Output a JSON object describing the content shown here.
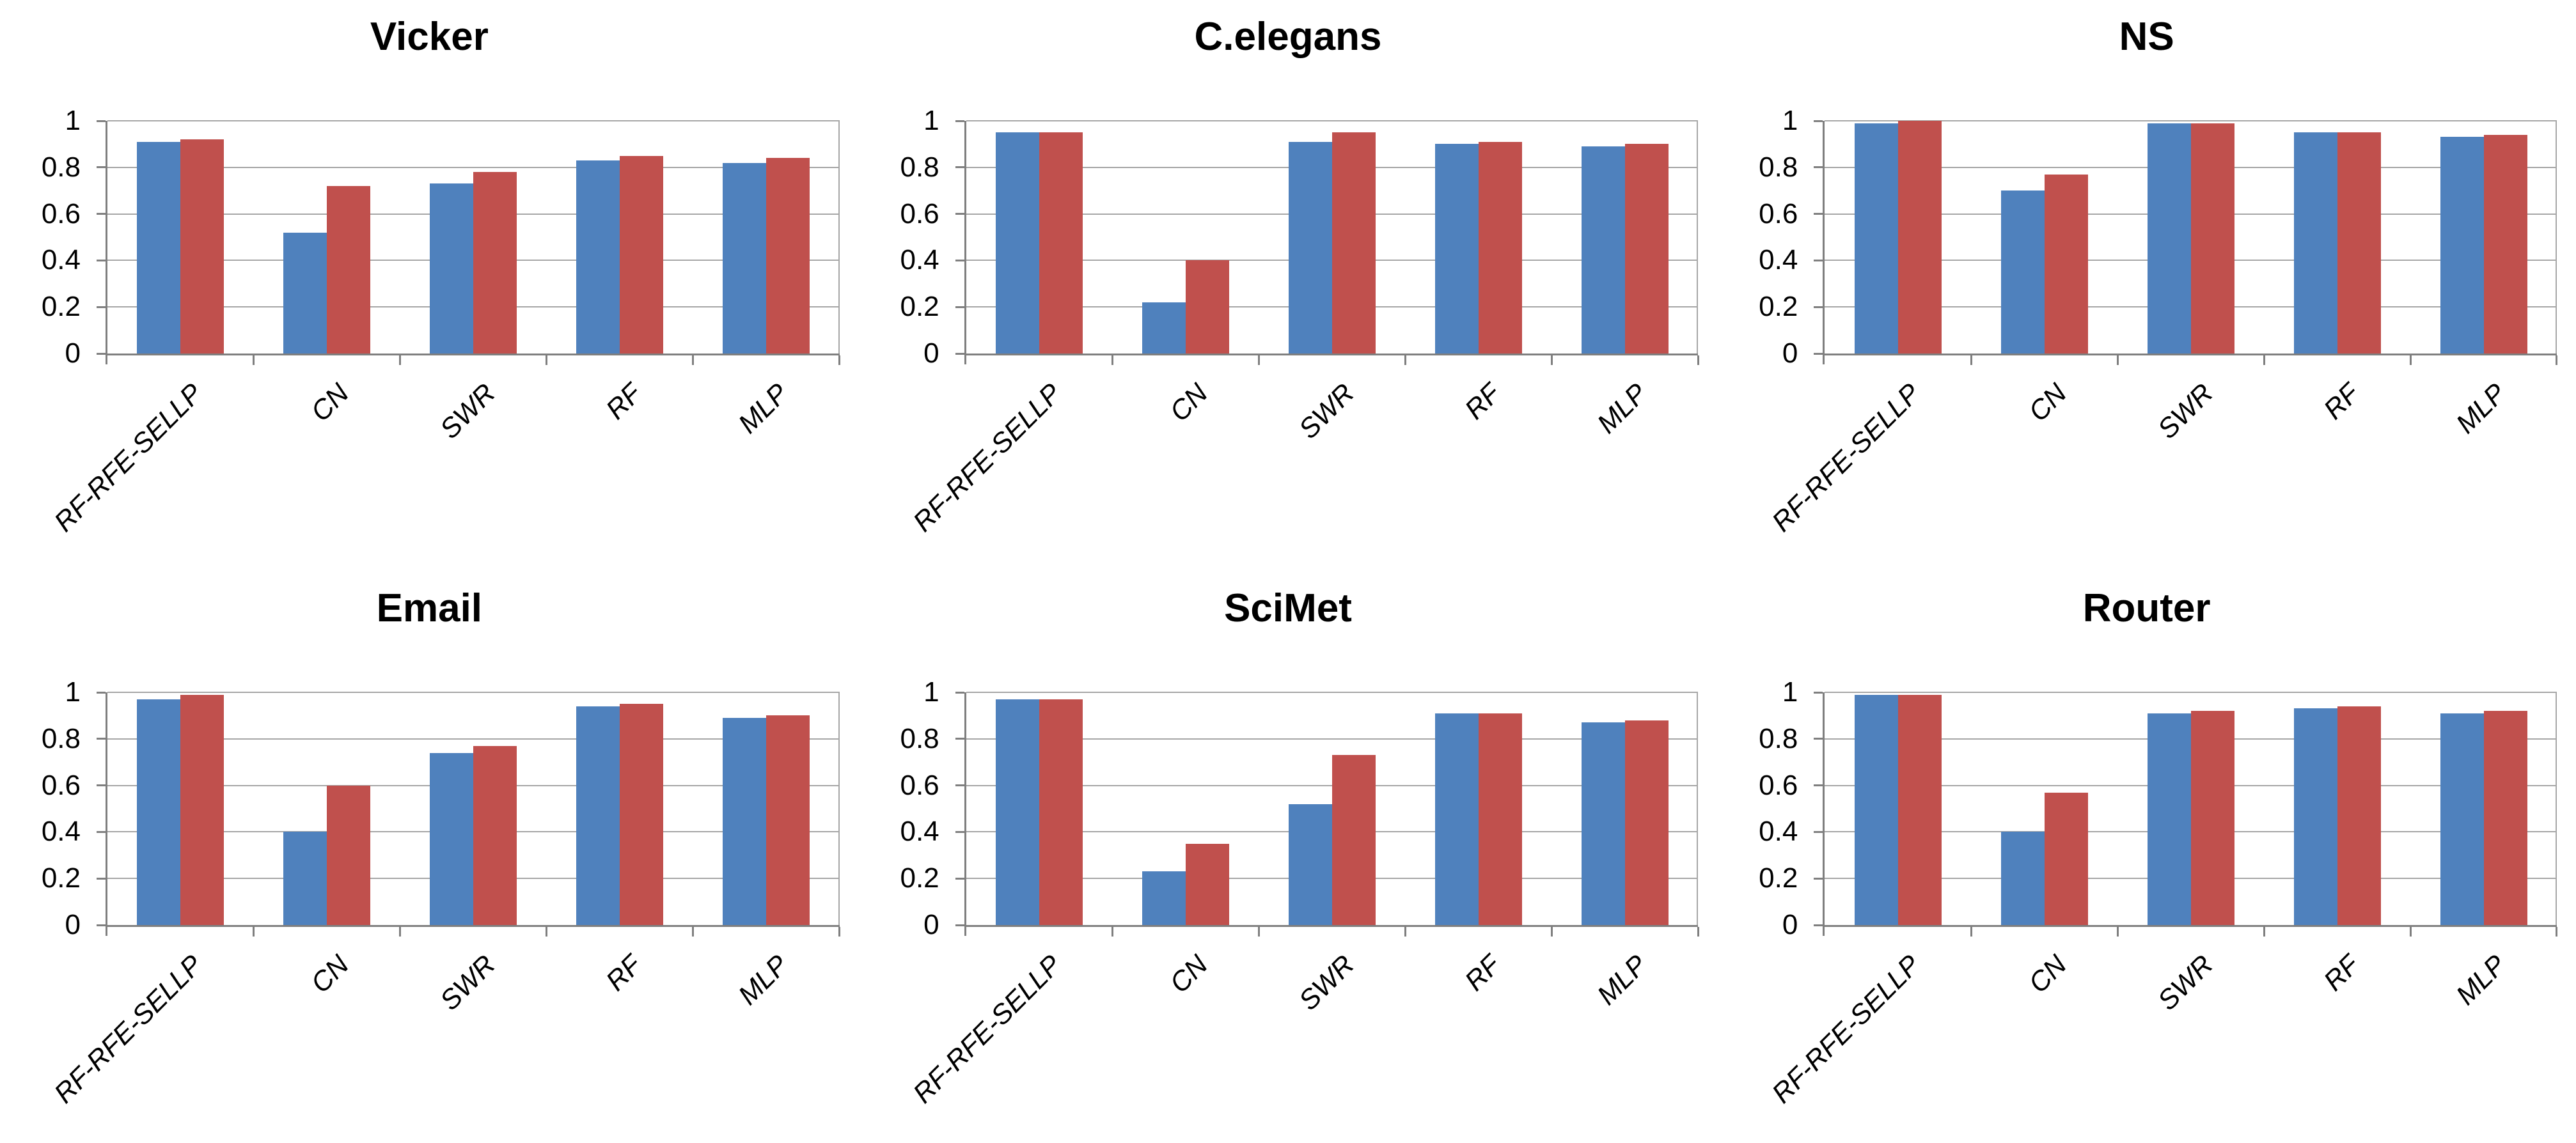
{
  "page": {
    "background": "#FFFFFF"
  },
  "palette": {
    "series_blue": "#4F81BD",
    "series_red": "#C0504D",
    "gridline": "#A6A6A6",
    "axis": "#7F7F7F",
    "text": "#000000"
  },
  "axis": {
    "y_ticks": [
      "1",
      "0.8",
      "0.6",
      "0.4",
      "0.2",
      "0"
    ],
    "ylim": [
      0,
      1
    ],
    "categories": [
      "RF-RFE-SELLP",
      "CN",
      "SWR",
      "RF",
      "MLP"
    ]
  },
  "chart_data": [
    {
      "type": "bar",
      "title": "Vicker",
      "categories": [
        "RF-RFE-SELLP",
        "CN",
        "SWR",
        "RF",
        "MLP"
      ],
      "series": [
        {
          "name": "blue",
          "color": "#4F81BD",
          "values": [
            0.91,
            0.52,
            0.73,
            0.83,
            0.82
          ]
        },
        {
          "name": "red",
          "color": "#C0504D",
          "values": [
            0.92,
            0.72,
            0.78,
            0.85,
            0.84
          ]
        }
      ],
      "ylim": [
        0,
        1
      ],
      "y_tick_labels": [
        "1",
        "0.8",
        "0.6",
        "0.4",
        "0.2",
        "0"
      ],
      "grid": true,
      "legend": "none"
    },
    {
      "type": "bar",
      "title": "C.elegans",
      "categories": [
        "RF-RFE-SELLP",
        "CN",
        "SWR",
        "RF",
        "MLP"
      ],
      "series": [
        {
          "name": "blue",
          "color": "#4F81BD",
          "values": [
            0.95,
            0.22,
            0.91,
            0.9,
            0.89
          ]
        },
        {
          "name": "red",
          "color": "#C0504D",
          "values": [
            0.95,
            0.4,
            0.95,
            0.91,
            0.9
          ]
        }
      ],
      "ylim": [
        0,
        1
      ],
      "y_tick_labels": [
        "1",
        "0.8",
        "0.6",
        "0.4",
        "0.2",
        "0"
      ],
      "grid": true,
      "legend": "none"
    },
    {
      "type": "bar",
      "title": "NS",
      "categories": [
        "RF-RFE-SELLP",
        "CN",
        "SWR",
        "RF",
        "MLP"
      ],
      "series": [
        {
          "name": "blue",
          "color": "#4F81BD",
          "values": [
            0.99,
            0.7,
            0.99,
            0.95,
            0.93
          ]
        },
        {
          "name": "red",
          "color": "#C0504D",
          "values": [
            1.0,
            0.77,
            0.99,
            0.95,
            0.94
          ]
        }
      ],
      "ylim": [
        0,
        1
      ],
      "y_tick_labels": [
        "1",
        "0.8",
        "0.6",
        "0.4",
        "0.2",
        "0"
      ],
      "grid": true,
      "legend": "none"
    },
    {
      "type": "bar",
      "title": "Email",
      "categories": [
        "RF-RFE-SELLP",
        "CN",
        "SWR",
        "RF",
        "MLP"
      ],
      "series": [
        {
          "name": "blue",
          "color": "#4F81BD",
          "values": [
            0.97,
            0.4,
            0.74,
            0.94,
            0.89
          ]
        },
        {
          "name": "red",
          "color": "#C0504D",
          "values": [
            0.99,
            0.6,
            0.77,
            0.95,
            0.9
          ]
        }
      ],
      "ylim": [
        0,
        1
      ],
      "y_tick_labels": [
        "1",
        "0.8",
        "0.6",
        "0.4",
        "0.2",
        "0"
      ],
      "grid": true,
      "legend": "none"
    },
    {
      "type": "bar",
      "title": "SciMet",
      "categories": [
        "RF-RFE-SELLP",
        "CN",
        "SWR",
        "RF",
        "MLP"
      ],
      "series": [
        {
          "name": "blue",
          "color": "#4F81BD",
          "values": [
            0.97,
            0.23,
            0.52,
            0.91,
            0.87
          ]
        },
        {
          "name": "red",
          "color": "#C0504D",
          "values": [
            0.97,
            0.35,
            0.73,
            0.91,
            0.88
          ]
        }
      ],
      "ylim": [
        0,
        1
      ],
      "y_tick_labels": [
        "1",
        "0.8",
        "0.6",
        "0.4",
        "0.2",
        "0"
      ],
      "grid": true,
      "legend": "none"
    },
    {
      "type": "bar",
      "title": "Router",
      "categories": [
        "RF-RFE-SELLP",
        "CN",
        "SWR",
        "RF",
        "MLP"
      ],
      "series": [
        {
          "name": "blue",
          "color": "#4F81BD",
          "values": [
            0.99,
            0.4,
            0.91,
            0.93,
            0.91
          ]
        },
        {
          "name": "red",
          "color": "#C0504D",
          "values": [
            0.99,
            0.57,
            0.92,
            0.94,
            0.92
          ]
        }
      ],
      "ylim": [
        0,
        1
      ],
      "y_tick_labels": [
        "1",
        "0.8",
        "0.6",
        "0.4",
        "0.2",
        "0"
      ],
      "grid": true,
      "legend": "none"
    }
  ]
}
